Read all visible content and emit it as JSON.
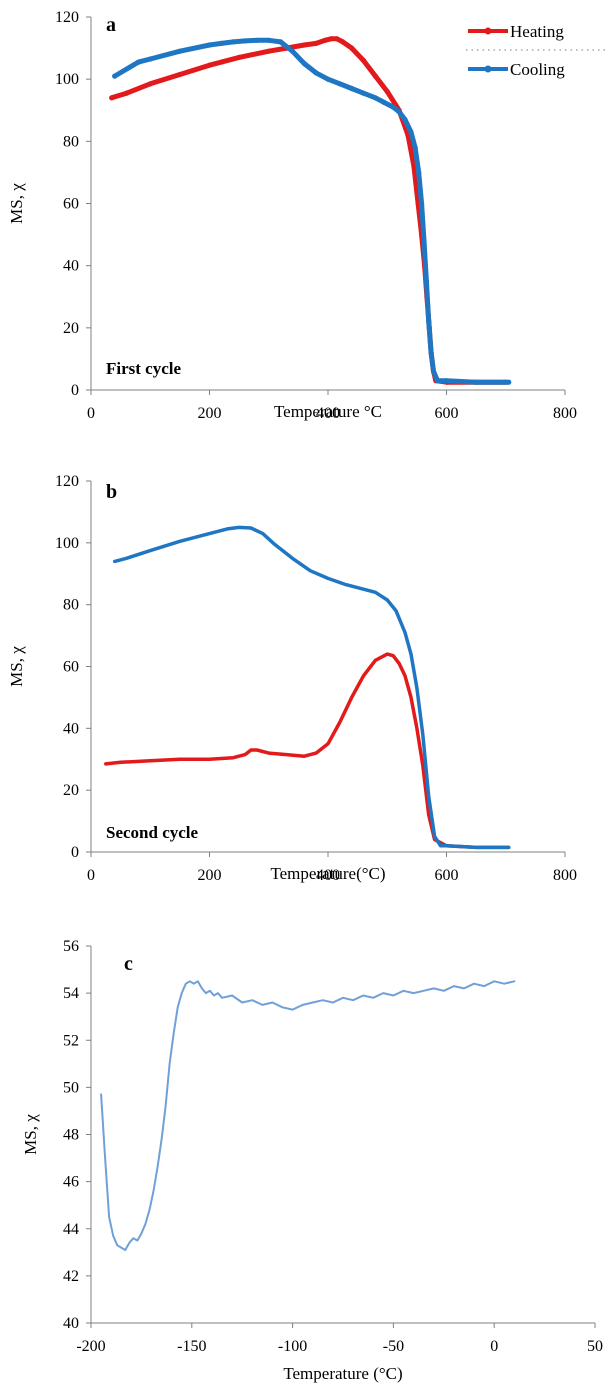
{
  "chart_data": [
    {
      "type": "line",
      "panel_label": "a",
      "annotation": "First cycle",
      "xlabel": "Temperature °C",
      "ylabel": "MS, χ",
      "xlim": [
        0,
        800
      ],
      "ylim": [
        0,
        120
      ],
      "xticks": [
        0,
        200,
        400,
        600,
        800
      ],
      "yticks": [
        0,
        20,
        40,
        60,
        80,
        100,
        120
      ],
      "legend": "top-right",
      "markers": true,
      "series": [
        {
          "name": "Heating",
          "color": "#e31a1c",
          "x": [
            35,
            60,
            100,
            150,
            200,
            250,
            300,
            330,
            360,
            380,
            395,
            405,
            415,
            425,
            440,
            460,
            480,
            500,
            520,
            535,
            545,
            552,
            558,
            563,
            567,
            571,
            574,
            578,
            582,
            600,
            650,
            700
          ],
          "y": [
            94,
            95.5,
            98.5,
            101.5,
            104.5,
            107,
            109,
            110,
            111,
            111.5,
            112.5,
            113,
            113,
            112,
            110,
            106,
            101,
            96,
            90,
            82,
            72,
            60,
            50,
            40,
            30,
            20,
            12,
            6,
            3,
            2.5,
            2.5,
            2.5
          ]
        },
        {
          "name": "Cooling",
          "color": "#1f77c4",
          "x": [
            705,
            650,
            600,
            585,
            578,
            574,
            570,
            566,
            562,
            558,
            553,
            547,
            540,
            530,
            520,
            510,
            495,
            480,
            460,
            440,
            420,
            400,
            380,
            360,
            340,
            320,
            300,
            280,
            260,
            240,
            220,
            200,
            150,
            100,
            80,
            40
          ],
          "y": [
            2.5,
            2.5,
            3,
            3,
            6,
            12,
            22,
            35,
            48,
            60,
            70,
            78,
            83,
            87,
            89.5,
            91,
            92.5,
            94,
            95.5,
            97,
            98.5,
            100,
            102,
            105,
            109,
            112,
            112.5,
            112.5,
            112.3,
            112,
            111.5,
            111,
            109,
            106.5,
            105.5,
            101
          ]
        }
      ]
    },
    {
      "type": "line",
      "panel_label": "b",
      "annotation": "Second cycle",
      "xlabel": "Temperature(°C)",
      "ylabel": "MS, χ",
      "xlim": [
        0,
        800
      ],
      "ylim": [
        0,
        120
      ],
      "xticks": [
        0,
        200,
        400,
        600,
        800
      ],
      "yticks": [
        0,
        20,
        40,
        60,
        80,
        100,
        120
      ],
      "series": [
        {
          "name": "",
          "color": "#e31a1c",
          "x": [
            25,
            50,
            100,
            150,
            200,
            240,
            260,
            270,
            280,
            300,
            330,
            360,
            380,
            400,
            420,
            440,
            460,
            480,
            500,
            510,
            520,
            530,
            540,
            550,
            560,
            570,
            580,
            600,
            650,
            705
          ],
          "y": [
            28.5,
            29,
            29.5,
            30,
            30,
            30.5,
            31.5,
            33,
            33,
            32,
            31.5,
            31,
            32,
            35,
            42,
            50,
            57,
            62,
            64,
            63.5,
            61,
            57,
            50,
            40,
            28,
            12,
            4,
            2,
            1.5,
            1.5
          ]
        },
        {
          "name": "",
          "color": "#1f77c4",
          "x": [
            40,
            60,
            100,
            150,
            200,
            230,
            250,
            270,
            290,
            310,
            340,
            370,
            400,
            430,
            460,
            480,
            500,
            515,
            530,
            540,
            550,
            560,
            570,
            580,
            590,
            600,
            650,
            705
          ],
          "y": [
            94,
            95,
            97.5,
            100.5,
            103,
            104.5,
            105,
            104.8,
            103,
            99.5,
            95,
            91,
            88.5,
            86.5,
            85,
            84,
            81.5,
            78,
            71,
            64,
            53,
            38,
            18,
            5,
            2,
            2,
            1.5,
            1.5
          ]
        }
      ]
    },
    {
      "type": "line",
      "panel_label": "c",
      "xlabel": "Temperature (°C)",
      "ylabel": "MS, χ",
      "xlim": [
        -200,
        50
      ],
      "ylim": [
        40,
        56
      ],
      "xticks": [
        -200,
        -150,
        -100,
        -50,
        0,
        50
      ],
      "yticks": [
        40,
        42,
        44,
        46,
        48,
        50,
        52,
        54,
        56
      ],
      "series": [
        {
          "name": "",
          "color": "#6fa0d8",
          "x": [
            -195,
            -193,
            -191,
            -189,
            -187,
            -185,
            -183,
            -181,
            -179,
            -177,
            -175,
            -173,
            -171,
            -169,
            -167,
            -165,
            -163,
            -161,
            -159,
            -157,
            -155,
            -153,
            -151,
            -149,
            -147,
            -145,
            -143,
            -141,
            -139,
            -137,
            -135,
            -130,
            -125,
            -120,
            -115,
            -110,
            -105,
            -100,
            -95,
            -90,
            -85,
            -80,
            -75,
            -70,
            -65,
            -60,
            -55,
            -50,
            -45,
            -40,
            -35,
            -30,
            -25,
            -20,
            -15,
            -10,
            -5,
            0,
            5,
            10
          ],
          "y": [
            49.7,
            47,
            44.5,
            43.7,
            43.3,
            43.2,
            43.1,
            43.4,
            43.6,
            43.5,
            43.8,
            44.2,
            44.8,
            45.6,
            46.6,
            47.8,
            49.2,
            51,
            52.3,
            53.4,
            54,
            54.4,
            54.5,
            54.4,
            54.5,
            54.2,
            54,
            54.1,
            53.9,
            54,
            53.8,
            53.9,
            53.6,
            53.7,
            53.5,
            53.6,
            53.4,
            53.3,
            53.5,
            53.6,
            53.7,
            53.6,
            53.8,
            53.7,
            53.9,
            53.8,
            54,
            53.9,
            54.1,
            54,
            54.1,
            54.2,
            54.1,
            54.3,
            54.2,
            54.4,
            54.3,
            54.5,
            54.4,
            54.5
          ]
        }
      ]
    }
  ]
}
